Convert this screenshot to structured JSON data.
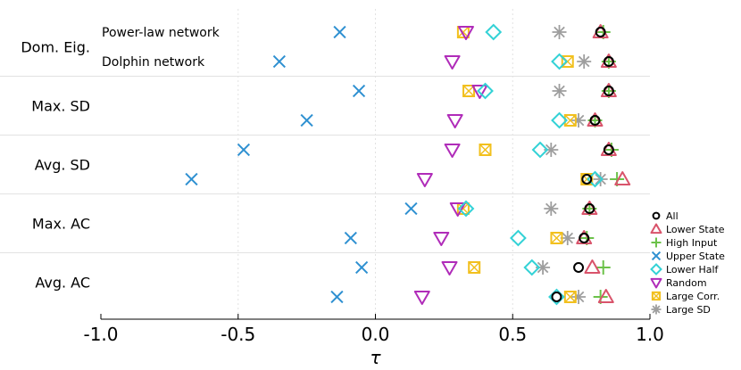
{
  "chart_data": {
    "type": "scatter",
    "title": "",
    "xlabel": "τ",
    "ylabel": "",
    "xlim": [
      -1.0,
      1.0
    ],
    "xticks": [
      -1.0,
      -0.5,
      0.0,
      0.5,
      1.0
    ],
    "xtick_labels": [
      "-1.0",
      "-0.5",
      "0.0",
      "0.5",
      "1.0"
    ],
    "grid": "vertical dotted at -0.5, 0.0, 0.5; horizontal separators between groups",
    "legend_position": "right",
    "row_annotations": [
      "Power-law network",
      "Dolphin network"
    ],
    "groups": [
      "Dom. Eig.",
      "Max. SD",
      "Avg. SD",
      "Max. AC",
      "Avg. AC"
    ],
    "networks": [
      "Power-law network",
      "Dolphin network"
    ],
    "series": [
      {
        "name": "All",
        "marker": "circle",
        "color": "#000000",
        "values": [
          [
            0.82,
            0.85
          ],
          [
            0.85,
            0.8
          ],
          [
            0.85,
            0.77
          ],
          [
            0.78,
            0.76
          ],
          [
            0.74,
            0.66
          ]
        ]
      },
      {
        "name": "Lower State",
        "marker": "triangle-up",
        "color": "#d9546b",
        "values": [
          [
            0.82,
            0.85
          ],
          [
            0.85,
            0.8
          ],
          [
            0.85,
            0.9
          ],
          [
            0.78,
            0.76
          ],
          [
            0.79,
            0.84
          ]
        ]
      },
      {
        "name": "High Input",
        "marker": "plus",
        "color": "#6cc24a",
        "values": [
          [
            0.83,
            0.85
          ],
          [
            0.85,
            0.8
          ],
          [
            0.86,
            0.88
          ],
          [
            0.78,
            0.77
          ],
          [
            0.83,
            0.82
          ]
        ]
      },
      {
        "name": "Upper State",
        "marker": "x",
        "color": "#2e90d1",
        "values": [
          [
            -0.13,
            -0.35
          ],
          [
            -0.06,
            -0.25
          ],
          [
            -0.48,
            -0.67
          ],
          [
            0.13,
            -0.09
          ],
          [
            -0.05,
            -0.14
          ]
        ]
      },
      {
        "name": "Lower Half",
        "marker": "diamond",
        "color": "#33d2d6",
        "values": [
          [
            0.43,
            0.67
          ],
          [
            0.4,
            0.67
          ],
          [
            0.6,
            0.8
          ],
          [
            0.33,
            0.52
          ],
          [
            0.57,
            0.66
          ]
        ]
      },
      {
        "name": "Random",
        "marker": "triangle-down",
        "color": "#b02cb9",
        "values": [
          [
            0.33,
            0.28
          ],
          [
            0.38,
            0.29
          ],
          [
            0.28,
            0.18
          ],
          [
            0.3,
            0.24
          ],
          [
            0.27,
            0.17
          ]
        ]
      },
      {
        "name": "Large Corr.",
        "marker": "square-x",
        "color": "#f2c01e",
        "values": [
          [
            0.32,
            0.7
          ],
          [
            0.34,
            0.71
          ],
          [
            0.4,
            0.77
          ],
          [
            0.32,
            0.66
          ],
          [
            0.36,
            0.71
          ]
        ]
      },
      {
        "name": "Large SD",
        "marker": "asterisk",
        "color": "#9e9e9e",
        "values": [
          [
            0.67,
            0.76
          ],
          [
            0.67,
            0.74
          ],
          [
            0.64,
            0.82
          ],
          [
            0.64,
            0.7
          ],
          [
            0.61,
            0.74
          ]
        ]
      }
    ]
  }
}
